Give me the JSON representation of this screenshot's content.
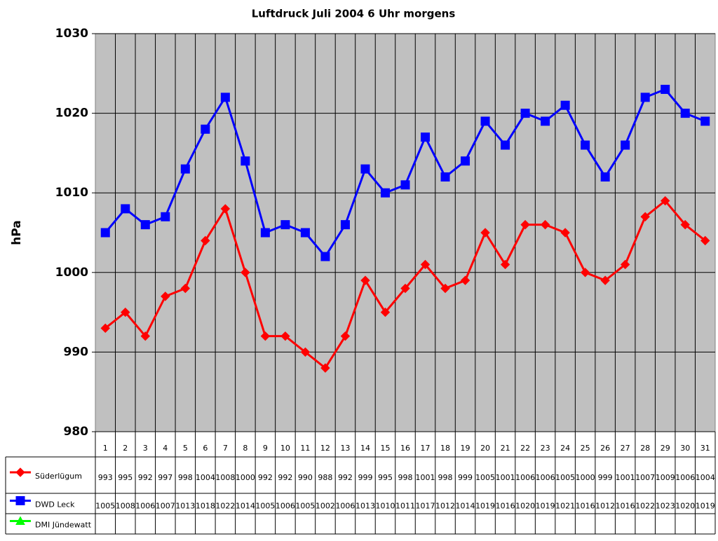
{
  "chart_data": {
    "type": "line",
    "title": "Luftdruck Juli 2004 6 Uhr morgens",
    "y_label": "hPa",
    "categories": [
      "1",
      "2",
      "3",
      "4",
      "5",
      "6",
      "7",
      "8",
      "9",
      "10",
      "11",
      "12",
      "13",
      "14",
      "15",
      "16",
      "17",
      "18",
      "19",
      "20",
      "21",
      "22",
      "23",
      "24",
      "25",
      "26",
      "27",
      "28",
      "29",
      "30",
      "31"
    ],
    "series": [
      {
        "name": "Süderlügum",
        "color": "#ff0000",
        "marker": "diamond",
        "values": [
          993,
          995,
          992,
          997,
          998,
          1004,
          1008,
          1000,
          992,
          992,
          990,
          988,
          992,
          999,
          995,
          998,
          1001,
          998,
          999,
          1005,
          1001,
          1006,
          1006,
          1005,
          1000,
          999,
          1001,
          1007,
          1009,
          1006,
          1004
        ]
      },
      {
        "name": "DWD Leck",
        "color": "#0000ff",
        "marker": "square",
        "values": [
          1005,
          1008,
          1006,
          1007,
          1013,
          1018,
          1022,
          1014,
          1005,
          1006,
          1005,
          1002,
          1006,
          1013,
          1010,
          1011,
          1017,
          1012,
          1014,
          1019,
          1016,
          1020,
          1019,
          1021,
          1016,
          1012,
          1016,
          1022,
          1023,
          1020,
          1019
        ]
      },
      {
        "name": "DMI Jündewatt",
        "color": "#00ff00",
        "marker": "triangle",
        "values": [
          null,
          null,
          null,
          null,
          null,
          null,
          null,
          null,
          null,
          null,
          null,
          null,
          null,
          null,
          null,
          null,
          null,
          null,
          null,
          null,
          null,
          null,
          null,
          null,
          null,
          null,
          null,
          null,
          null,
          null,
          null
        ]
      }
    ],
    "ylim": [
      980,
      1030
    ],
    "yticks": [
      980,
      990,
      1000,
      1010,
      1020,
      1030
    ],
    "grid": true,
    "data_table": true
  }
}
